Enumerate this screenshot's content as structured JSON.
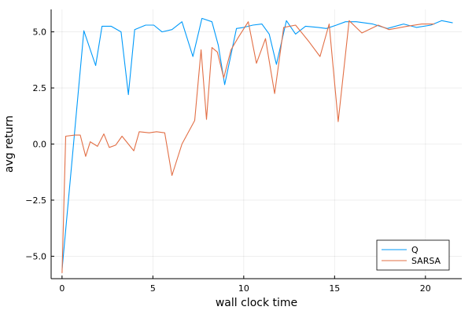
{
  "chart_data": {
    "type": "line",
    "title": "",
    "xlabel": "wall clock time",
    "ylabel": "avg return",
    "xlim": [
      -0.6,
      22.0
    ],
    "ylim": [
      -6.0,
      6.0
    ],
    "xticks": [
      0,
      5,
      10,
      15,
      20
    ],
    "xtick_labels": [
      "0",
      "5",
      "10",
      "15",
      "20"
    ],
    "yticks": [
      -5.0,
      -2.5,
      0.0,
      2.5,
      5.0
    ],
    "ytick_labels": [
      "−5.0",
      "−2.5",
      "0.0",
      "2.5",
      "5.0"
    ],
    "grid": true,
    "legend_position": "bottom-right",
    "series": [
      {
        "name": "Q",
        "color": "#009AFA",
        "x": [
          0,
          1.2,
          1.85,
          2.2,
          2.7,
          3.25,
          3.65,
          4.0,
          4.6,
          5.05,
          5.5,
          6.05,
          6.6,
          7.2,
          7.7,
          8.25,
          8.6,
          8.95,
          9.3,
          9.6,
          10.0,
          10.5,
          11.0,
          11.4,
          11.8,
          12.35,
          12.85,
          13.4,
          14.1,
          14.55,
          15.1,
          15.6,
          16.2,
          17.1,
          17.9,
          18.8,
          19.5,
          20.3,
          20.9,
          21.5
        ],
        "y": [
          -5.6,
          5.05,
          3.5,
          5.25,
          5.25,
          5.0,
          2.2,
          5.1,
          5.3,
          5.3,
          5.0,
          5.1,
          5.45,
          3.9,
          5.6,
          5.45,
          4.4,
          2.65,
          4.0,
          5.15,
          5.2,
          5.3,
          5.35,
          4.9,
          3.55,
          5.5,
          4.9,
          5.25,
          5.2,
          5.15,
          5.3,
          5.45,
          5.45,
          5.35,
          5.15,
          5.35,
          5.2,
          5.3,
          5.5,
          5.4
        ]
      },
      {
        "name": "SARSA",
        "color": "#E26F46",
        "x": [
          0,
          0.2,
          0.7,
          1.0,
          1.3,
          1.55,
          1.95,
          2.3,
          2.6,
          2.95,
          3.3,
          3.95,
          4.25,
          4.8,
          5.2,
          5.65,
          6.05,
          6.6,
          7.3,
          7.65,
          7.95,
          8.25,
          8.55,
          8.9,
          9.3,
          9.7,
          10.25,
          10.7,
          11.2,
          11.7,
          12.2,
          12.85,
          13.6,
          14.2,
          14.7,
          15.2,
          15.8,
          16.5,
          17.4,
          18.0,
          19.0,
          19.8,
          20.5
        ],
        "y": [
          -5.75,
          0.35,
          0.4,
          0.4,
          -0.55,
          0.1,
          -0.1,
          0.45,
          -0.15,
          -0.05,
          0.35,
          -0.3,
          0.55,
          0.5,
          0.55,
          0.5,
          -1.4,
          0.0,
          1.05,
          4.2,
          1.1,
          4.3,
          4.1,
          2.95,
          4.2,
          4.75,
          5.45,
          3.6,
          4.7,
          2.25,
          5.2,
          5.3,
          4.55,
          3.9,
          5.35,
          1.0,
          5.5,
          4.95,
          5.3,
          5.1,
          5.25,
          5.35,
          5.35
        ]
      }
    ]
  }
}
